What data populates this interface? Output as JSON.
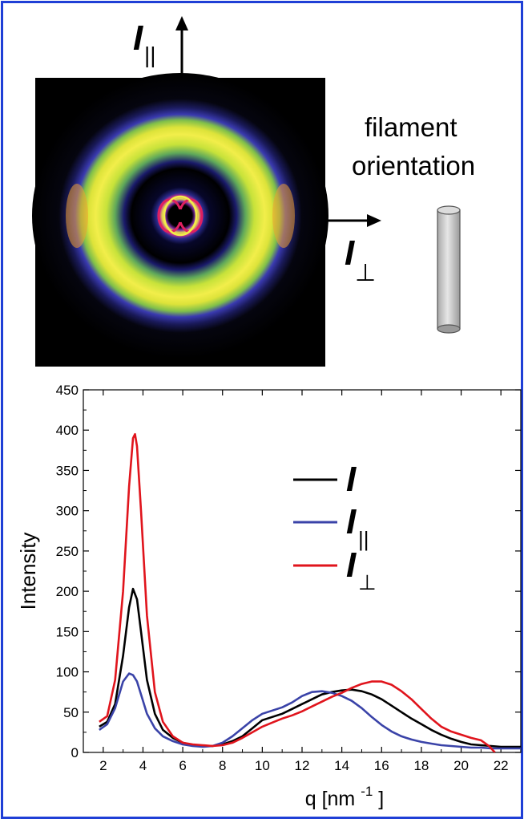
{
  "labels": {
    "i_par_main": "I",
    "i_par_sub": "||",
    "i_perp_main": "I",
    "i_perp_sub": "⊥",
    "filament_line1": "filament",
    "filament_line2": "orientation"
  },
  "colors": {
    "frame": "#1f3fd6",
    "I": "#000000",
    "I_par": "#3a43a8",
    "I_perp": "#e0141c"
  },
  "chart_data": {
    "type": "line",
    "xlabel": "q  [nm",
    "xlabel_sup": "-1",
    "xlabel_end": "]",
    "ylabel": "Intensity",
    "xlim": [
      1,
      23
    ],
    "ylim": [
      0,
      450
    ],
    "xticks": [
      2,
      4,
      6,
      8,
      10,
      12,
      14,
      16,
      18,
      20,
      22
    ],
    "yticks": [
      0,
      50,
      100,
      150,
      200,
      250,
      300,
      350,
      400,
      450
    ],
    "legend_position": "top-right",
    "series": [
      {
        "name": "I",
        "sub": "",
        "color": "#000000",
        "x": [
          1.8,
          2.2,
          2.6,
          3.0,
          3.3,
          3.5,
          3.7,
          3.9,
          4.2,
          4.6,
          5.0,
          5.5,
          6.0,
          6.5,
          7.0,
          7.5,
          8.0,
          8.5,
          9.0,
          9.5,
          10.0,
          10.5,
          11.0,
          11.5,
          12.0,
          12.5,
          13.0,
          13.5,
          14.0,
          14.5,
          15.0,
          15.5,
          16.0,
          16.5,
          17.0,
          17.5,
          18.0,
          18.5,
          19.0,
          19.5,
          20.0,
          20.5,
          21.0,
          21.5,
          22.0,
          22.5,
          23.0
        ],
        "y": [
          32,
          38,
          60,
          120,
          180,
          203,
          190,
          150,
          90,
          48,
          28,
          18,
          12,
          9,
          8,
          8,
          10,
          14,
          20,
          30,
          40,
          44,
          48,
          54,
          60,
          66,
          72,
          75,
          77,
          78,
          76,
          72,
          66,
          58,
          50,
          42,
          35,
          28,
          22,
          17,
          13,
          10,
          9,
          8,
          7,
          7,
          7
        ]
      },
      {
        "name": "I",
        "sub": "||",
        "color": "#3a43a8",
        "x": [
          1.8,
          2.2,
          2.6,
          3.0,
          3.3,
          3.5,
          3.7,
          3.9,
          4.2,
          4.6,
          5.0,
          5.5,
          6.0,
          6.5,
          7.0,
          7.5,
          8.0,
          8.5,
          9.0,
          9.5,
          10.0,
          10.5,
          11.0,
          11.5,
          12.0,
          12.5,
          13.0,
          13.5,
          14.0,
          14.5,
          15.0,
          15.5,
          16.0,
          16.5,
          17.0,
          17.5,
          18.0,
          18.5,
          19.0,
          19.5,
          20.0,
          20.5,
          21.0,
          21.5,
          22.0,
          22.5,
          23.0
        ],
        "y": [
          28,
          35,
          55,
          88,
          98,
          96,
          88,
          72,
          48,
          30,
          20,
          14,
          10,
          8,
          7,
          8,
          12,
          20,
          30,
          40,
          48,
          52,
          56,
          62,
          70,
          75,
          76,
          74,
          70,
          64,
          55,
          44,
          34,
          26,
          20,
          16,
          13,
          11,
          9,
          8,
          7,
          6,
          6,
          5,
          5,
          5,
          5
        ]
      },
      {
        "name": "I",
        "sub": "⊥",
        "color": "#e0141c",
        "x": [
          1.8,
          2.2,
          2.6,
          3.0,
          3.3,
          3.5,
          3.6,
          3.7,
          3.9,
          4.2,
          4.6,
          5.0,
          5.5,
          6.0,
          6.5,
          7.0,
          7.5,
          8.0,
          8.5,
          9.0,
          9.5,
          10.0,
          10.5,
          11.0,
          11.5,
          12.0,
          12.5,
          13.0,
          13.5,
          14.0,
          14.5,
          15.0,
          15.5,
          16.0,
          16.5,
          17.0,
          17.5,
          18.0,
          18.5,
          19.0,
          19.5,
          20.0,
          20.5,
          21.0,
          21.4,
          21.7
        ],
        "y": [
          38,
          45,
          90,
          200,
          330,
          390,
          395,
          380,
          300,
          170,
          75,
          38,
          20,
          12,
          10,
          9,
          8,
          9,
          12,
          18,
          25,
          32,
          37,
          42,
          46,
          51,
          57,
          63,
          69,
          74,
          80,
          85,
          88,
          88,
          84,
          76,
          66,
          54,
          42,
          32,
          26,
          22,
          18,
          15,
          8,
          0
        ]
      }
    ]
  }
}
